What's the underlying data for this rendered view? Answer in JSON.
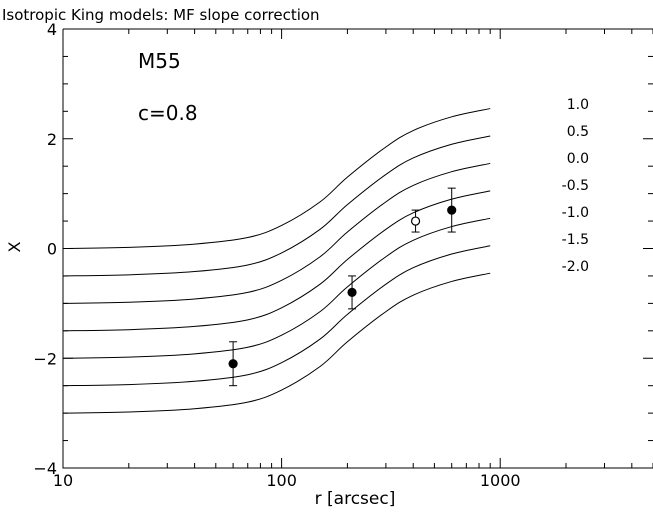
{
  "chart_data": {
    "type": "line",
    "title": "Isotropic King models: MF slope correction",
    "xlabel": "r [arcsec]",
    "ylabel": "X",
    "x_scale": "log",
    "xlim": [
      10,
      5000
    ],
    "ylim": [
      -4,
      4
    ],
    "x_tick_labels": [
      "10",
      "100",
      "1000"
    ],
    "y_tick_labels": [
      "4",
      "2",
      "0",
      "−2",
      "−4"
    ],
    "annotations": [
      "M55",
      "c=0.8"
    ],
    "grid": false,
    "series": [
      {
        "name": "1.0",
        "x": [
          10,
          20,
          40,
          70,
          100,
          150,
          200,
          300,
          400,
          600,
          900
        ],
        "y": [
          0.0,
          0.02,
          0.08,
          0.2,
          0.42,
          0.85,
          1.3,
          1.85,
          2.15,
          2.4,
          2.55
        ]
      },
      {
        "name": "0.5",
        "x": [
          10,
          20,
          40,
          70,
          100,
          150,
          200,
          300,
          400,
          600,
          900
        ],
        "y": [
          -0.5,
          -0.48,
          -0.42,
          -0.3,
          -0.08,
          0.35,
          0.8,
          1.35,
          1.65,
          1.9,
          2.05
        ]
      },
      {
        "name": "0.0",
        "x": [
          10,
          20,
          40,
          70,
          100,
          150,
          200,
          300,
          400,
          600,
          900
        ],
        "y": [
          -1.0,
          -0.98,
          -0.92,
          -0.8,
          -0.58,
          -0.15,
          0.3,
          0.85,
          1.15,
          1.4,
          1.55
        ]
      },
      {
        "name": "-0.5",
        "x": [
          10,
          20,
          40,
          70,
          100,
          150,
          200,
          300,
          400,
          600,
          900
        ],
        "y": [
          -1.5,
          -1.48,
          -1.42,
          -1.3,
          -1.08,
          -0.65,
          -0.2,
          0.35,
          0.65,
          0.9,
          1.05
        ]
      },
      {
        "name": "-1.0",
        "x": [
          10,
          20,
          40,
          70,
          100,
          150,
          200,
          300,
          400,
          600,
          900
        ],
        "y": [
          -2.0,
          -1.98,
          -1.92,
          -1.8,
          -1.58,
          -1.15,
          -0.7,
          -0.15,
          0.15,
          0.4,
          0.55
        ]
      },
      {
        "name": "-1.5",
        "x": [
          10,
          20,
          40,
          70,
          100,
          150,
          200,
          300,
          400,
          600,
          900
        ],
        "y": [
          -2.5,
          -2.48,
          -2.42,
          -2.3,
          -2.08,
          -1.65,
          -1.2,
          -0.65,
          -0.35,
          -0.1,
          0.05
        ]
      },
      {
        "name": "-2.0",
        "x": [
          10,
          20,
          40,
          70,
          100,
          150,
          200,
          300,
          400,
          600,
          900
        ],
        "y": [
          -3.0,
          -2.98,
          -2.92,
          -2.8,
          -2.58,
          -2.15,
          -1.7,
          -1.15,
          -0.85,
          -0.6,
          -0.45
        ]
      }
    ],
    "points": [
      {
        "x": 60,
        "y": -2.1,
        "ylow": -2.5,
        "yhigh": -1.7,
        "filled": true
      },
      {
        "x": 210,
        "y": -0.8,
        "ylow": -1.1,
        "yhigh": -0.5,
        "filled": true
      },
      {
        "x": 410,
        "y": 0.5,
        "ylow": 0.3,
        "yhigh": 0.7,
        "filled": false
      },
      {
        "x": 600,
        "y": 0.7,
        "ylow": 0.3,
        "yhigh": 1.1,
        "filled": true
      }
    ]
  }
}
